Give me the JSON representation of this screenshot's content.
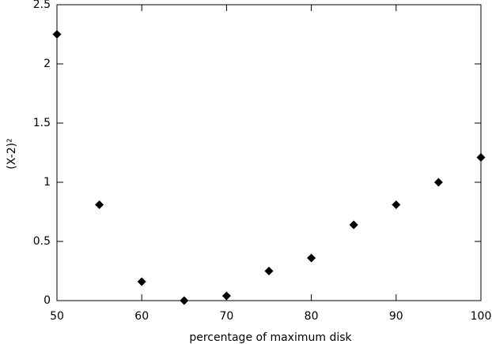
{
  "chart_data": {
    "type": "scatter",
    "xlabel": "percentage of maximum disk",
    "ylabel": "(X-2)²",
    "x": [
      50,
      55,
      60,
      65,
      70,
      75,
      80,
      85,
      90,
      95,
      100
    ],
    "series": [
      {
        "color": "#000000",
        "values": [
          2.25,
          0.81,
          0.16,
          0,
          0.04,
          0.25,
          0.36,
          0.64,
          0.81,
          1.0,
          1.21
        ]
      }
    ],
    "xlim": [
      50,
      100
    ],
    "xticks": [
      50,
      60,
      70,
      80,
      90,
      100
    ],
    "ylim": [
      0,
      2.5
    ],
    "yticks": [
      0,
      0.5,
      1,
      1.5,
      2,
      2.5
    ]
  }
}
